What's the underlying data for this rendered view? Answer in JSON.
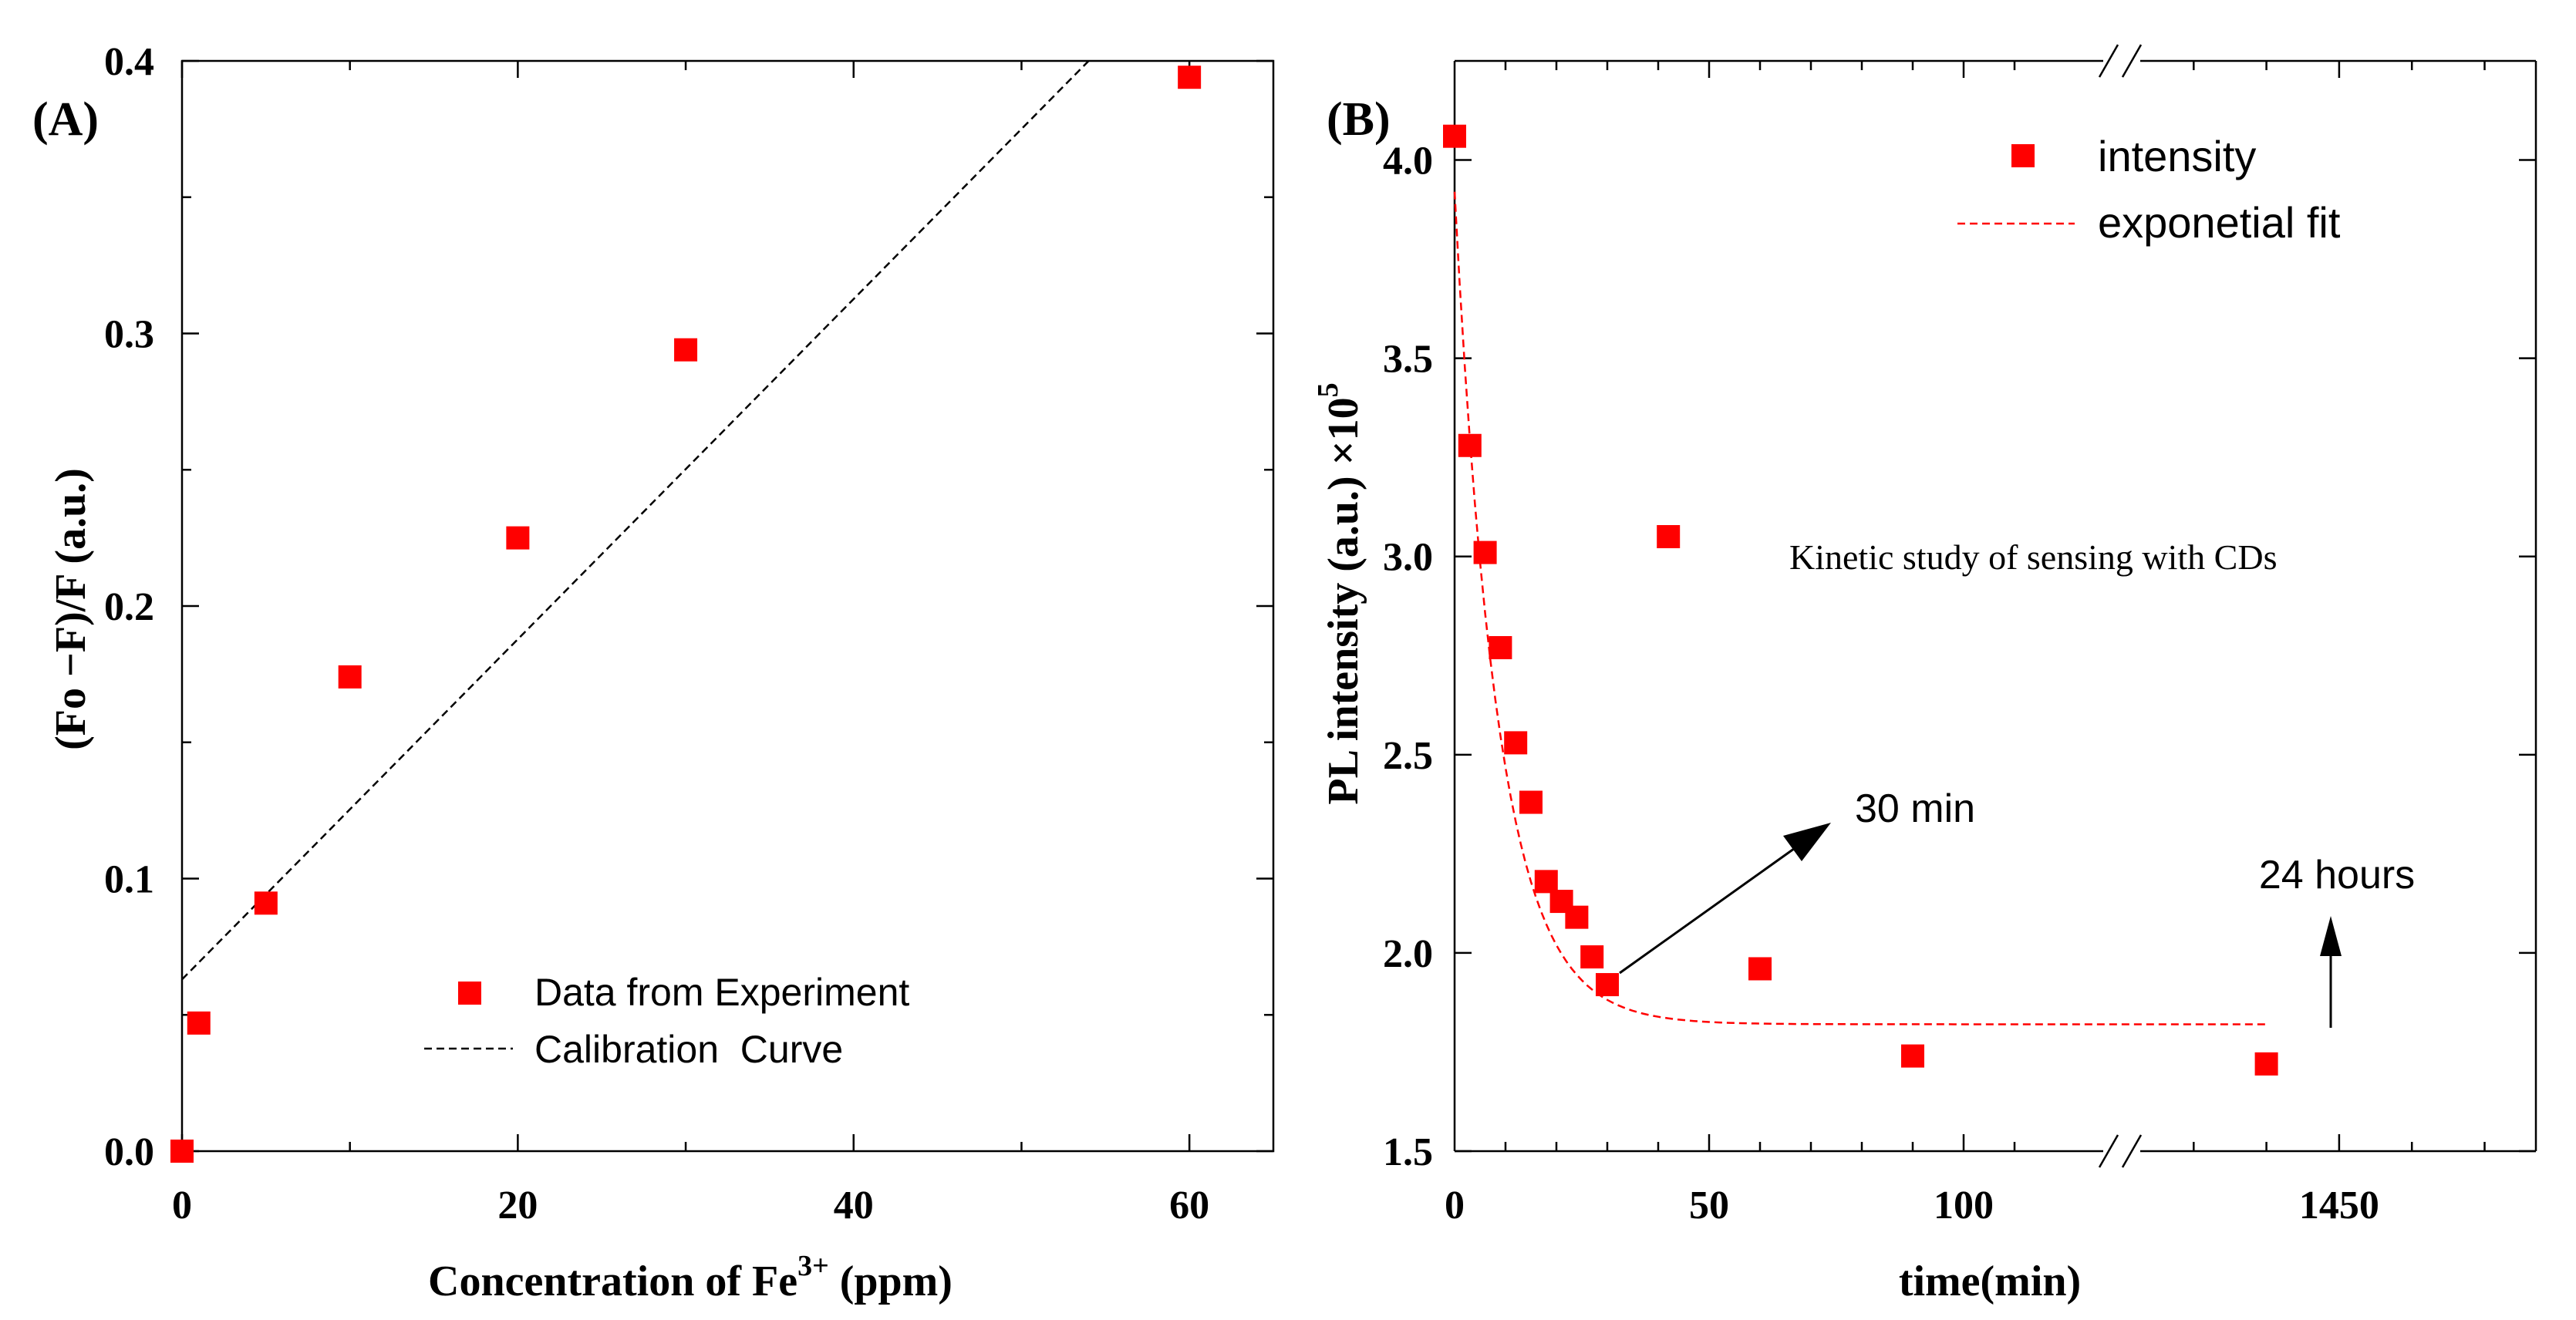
{
  "chart_data": [
    {
      "panel": "(A)",
      "type": "scatter",
      "xlabel": "Concentration of Fe",
      "xlabel_sup": "3+",
      "xlabel_unit": " (ppm)",
      "ylabel": "(Fo −F)/F (a.u.)",
      "xlim": [
        0,
        65
      ],
      "ylim": [
        0,
        0.4
      ],
      "xticks": [
        "0",
        "20",
        "40",
        "60"
      ],
      "yticks": [
        "0.0",
        "0.1",
        "0.2",
        "0.3",
        "0.4"
      ],
      "series": [
        {
          "name": "Data from Experiment",
          "kind": "markers",
          "x": [
            0,
            1,
            5,
            10,
            20,
            30,
            60
          ],
          "y": [
            0.0,
            0.047,
            0.091,
            0.174,
            0.225,
            0.294,
            0.394
          ]
        },
        {
          "name": "Calibration  Curve",
          "kind": "dashed-line",
          "x": [
            0,
            54
          ],
          "y": [
            0.063,
            0.4
          ]
        }
      ],
      "legend_position": "bottom-center"
    },
    {
      "panel": "(B)",
      "type": "scatter",
      "xlabel": "time(min)",
      "ylabel": "PL intensity (a.u.) ×10",
      "ylabel_sup": "5",
      "xticks": [
        "0",
        "50",
        "100",
        "1450"
      ],
      "yticks": [
        "1.5",
        "2.0",
        "2.5",
        "3.0",
        "3.5",
        "4.0"
      ],
      "ylim": [
        1.5,
        4.25
      ],
      "axis_break": "between 100 and 1450 min",
      "series": [
        {
          "name": "intensity",
          "kind": "markers",
          "x": [
            0,
            3,
            6,
            9,
            12,
            15,
            18,
            21,
            24,
            27,
            30,
            42,
            60,
            90,
            1440
          ],
          "y": [
            4.06,
            3.28,
            3.01,
            2.77,
            2.53,
            2.38,
            2.18,
            2.13,
            2.09,
            1.99,
            1.92,
            3.05,
            1.96,
            1.74,
            1.72
          ]
        },
        {
          "name": "exponetial fit",
          "kind": "dashed-line",
          "model": "y = 1.82 + 2.10*exp(-t/8.5)"
        }
      ],
      "annotations": [
        "30 min",
        "24 hours",
        "Kinetic study of sensing with CDs"
      ],
      "legend_position": "top-right"
    }
  ]
}
